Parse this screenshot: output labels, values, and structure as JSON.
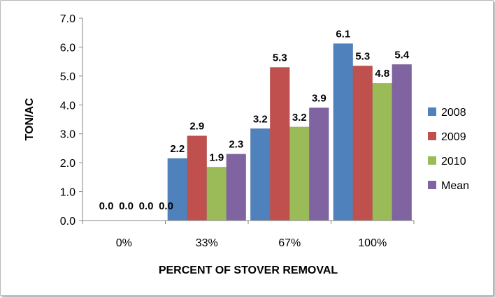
{
  "chart_data": {
    "type": "bar",
    "title": "",
    "xlabel": "PERCENT OF STOVER REMOVAL",
    "ylabel": "TON/AC",
    "categories": [
      "0%",
      "33%",
      "67%",
      "100%"
    ],
    "ylim": [
      0,
      7
    ],
    "ytick_step": 1,
    "ytick_labels": [
      "0.0",
      "1.0",
      "2.0",
      "3.0",
      "4.0",
      "5.0",
      "6.0",
      "7.0"
    ],
    "grid": false,
    "legend_position": "right",
    "series": [
      {
        "name": "2008",
        "color": "#4F81BD",
        "values": [
          0.0,
          2.15,
          3.18,
          6.12
        ],
        "labels": [
          "0.0",
          "2.2",
          "3.2",
          "6.1"
        ]
      },
      {
        "name": "2009",
        "color": "#C0504D",
        "values": [
          0.0,
          2.93,
          5.3,
          5.35
        ],
        "labels": [
          "0.0",
          "2.9",
          "5.3",
          "5.3"
        ]
      },
      {
        "name": "2010",
        "color": "#9BBB59",
        "values": [
          0.0,
          1.85,
          3.24,
          4.75
        ],
        "labels": [
          "0.0",
          "1.9",
          "3.2",
          "4.8"
        ]
      },
      {
        "name": "Mean",
        "color": "#8064A2",
        "values": [
          0.0,
          2.3,
          3.9,
          5.4
        ],
        "labels": [
          "0.0",
          "2.3",
          "3.9",
          "5.4"
        ]
      }
    ]
  }
}
